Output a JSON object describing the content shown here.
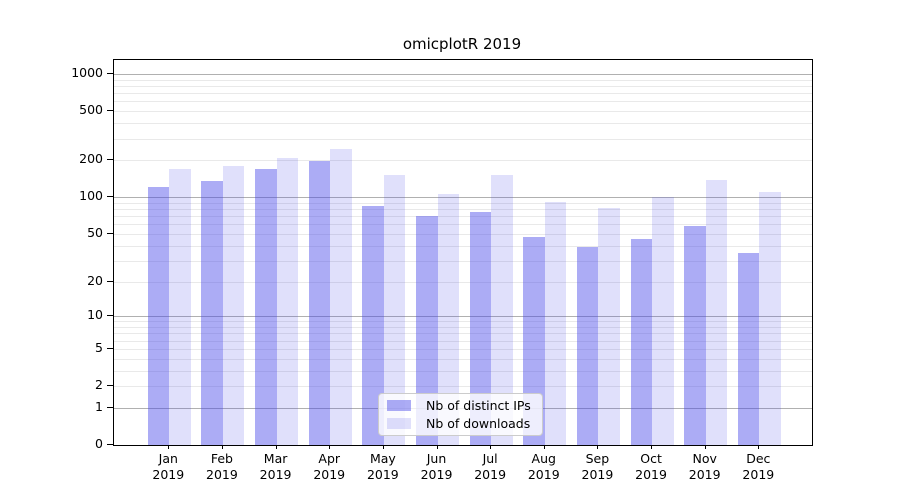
{
  "chart_data": {
    "type": "bar",
    "title": "omicplotR 2019",
    "categories": [
      "Jan 2019",
      "Feb 2019",
      "Mar 2019",
      "Apr 2019",
      "May 2019",
      "Jun 2019",
      "Jul 2019",
      "Aug 2019",
      "Sep 2019",
      "Oct 2019",
      "Nov 2019",
      "Dec 2019"
    ],
    "series": [
      {
        "name": "Nb of distinct IPs",
        "color": "rgba(70,70,232,0.45)",
        "values": [
          120,
          135,
          170,
          196,
          84,
          70,
          75,
          47,
          39,
          45,
          58,
          35
        ]
      },
      {
        "name": "Nb of downloads",
        "color": "rgba(70,70,232,0.17)",
        "values": [
          170,
          181,
          210,
          246,
          151,
          107,
          151,
          92,
          81,
          101,
          138,
          111
        ]
      }
    ],
    "xlabel": "",
    "ylabel": "",
    "yscale": "log1p",
    "y_ticks": [
      0,
      1,
      2,
      5,
      10,
      20,
      50,
      100,
      200,
      500,
      1000
    ],
    "ylim": [
      0,
      1300
    ],
    "grid": "major decades dark, log minors light",
    "legend_position": "lower center"
  },
  "colors": {
    "bar_dark": "rgba(70,70,232,0.45)",
    "bar_light": "rgba(70,70,232,0.17)",
    "grid_major": "#b0b0b0",
    "grid_minor": "#e9e9e9",
    "axis": "#000000"
  }
}
